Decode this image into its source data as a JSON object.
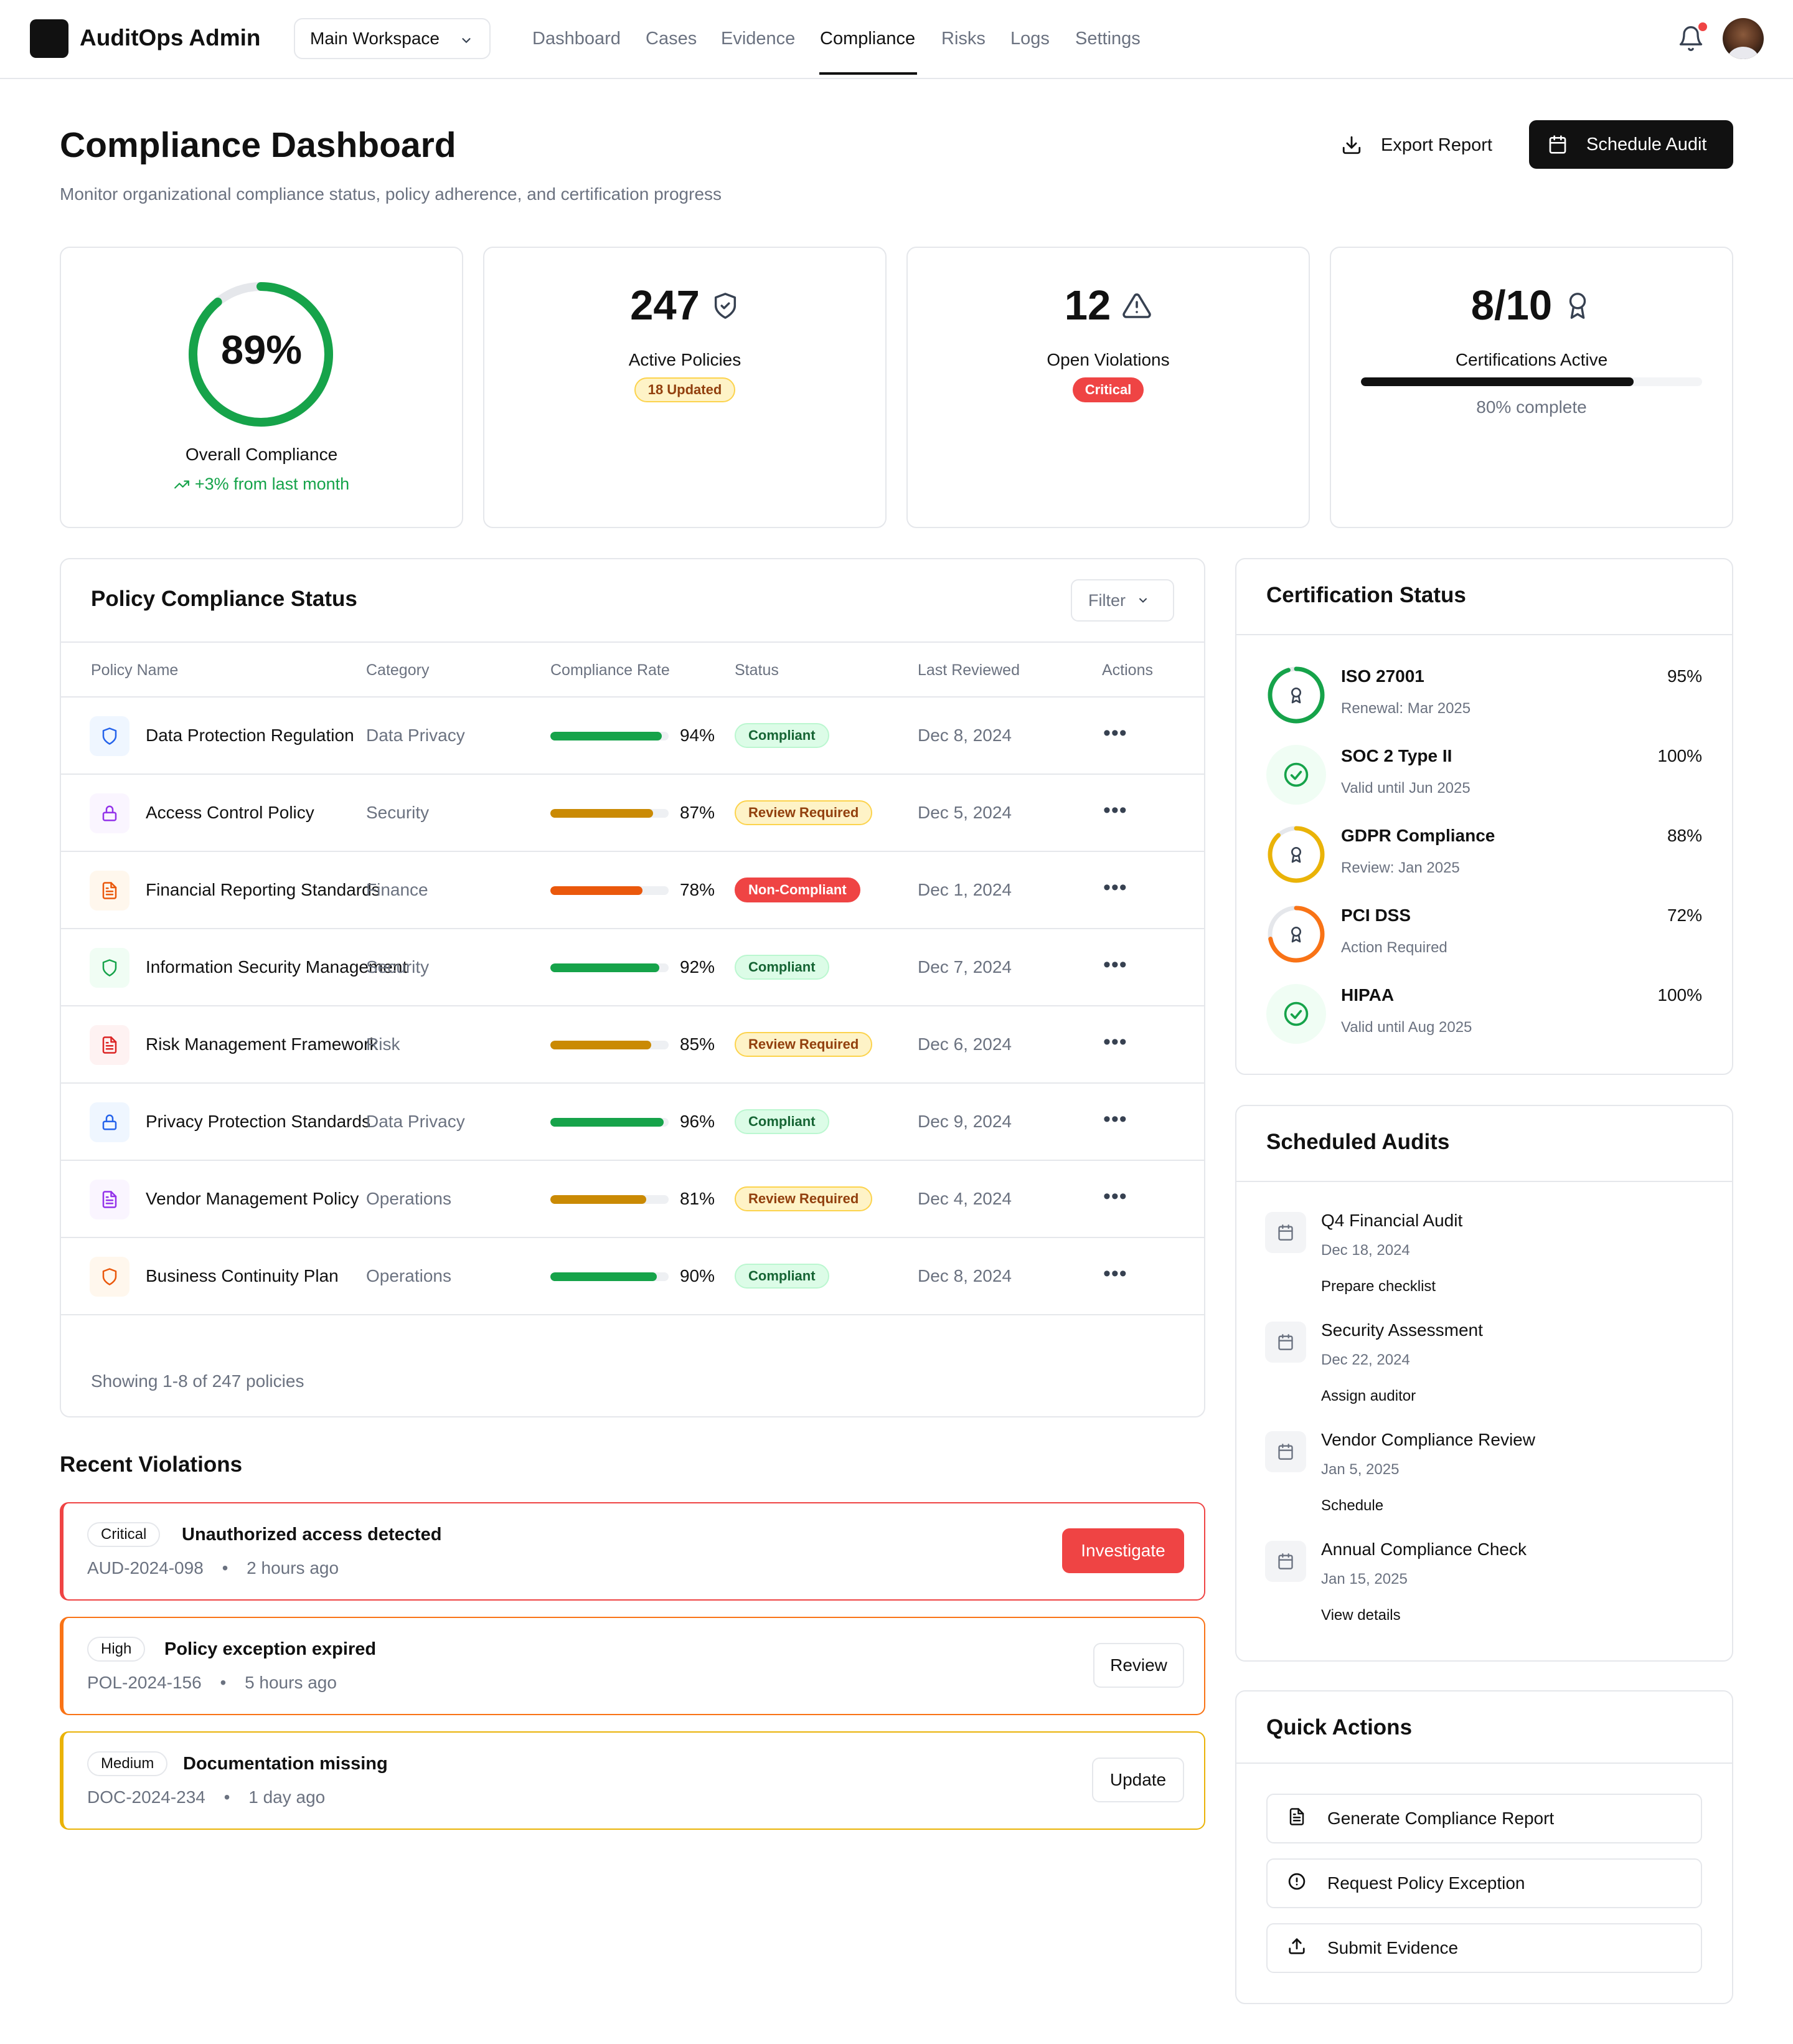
{
  "app": {
    "title": "AuditOps Admin",
    "workspace": "Main Workspace"
  },
  "nav": [
    {
      "label": "Dashboard",
      "active": false
    },
    {
      "label": "Cases",
      "active": false
    },
    {
      "label": "Evidence",
      "active": false
    },
    {
      "label": "Compliance",
      "active": true
    },
    {
      "label": "Risks",
      "active": false
    },
    {
      "label": "Logs",
      "active": false
    },
    {
      "label": "Settings",
      "active": false
    }
  ],
  "header": {
    "title": "Compliance Dashboard",
    "subtitle": "Monitor organizational compliance status, policy adherence, and certification progress",
    "export_label": "Export Report",
    "schedule_label": "Schedule Audit"
  },
  "stats": {
    "overall": {
      "value": "89%",
      "fraction": 0.89,
      "label": "Overall Compliance",
      "trend": "+3% from last month"
    },
    "policies": {
      "value": "247",
      "label": "Active Policies",
      "badge": "18 Updated"
    },
    "violations": {
      "value": "12",
      "label": "Open Violations",
      "badge": "Critical"
    },
    "certs": {
      "value": "8/10",
      "label": "Certifications Active",
      "progress": 0.8,
      "progress_text": "80% complete"
    }
  },
  "policy_table": {
    "title": "Policy Compliance Status",
    "filter_label": "Filter",
    "columns": [
      "Policy Name",
      "Category",
      "Compliance Rate",
      "Status",
      "Last Reviewed",
      "Actions"
    ],
    "rows": [
      {
        "name": "Data Protection Regulation",
        "category": "Data Privacy",
        "rate": "94%",
        "rate_value": 94,
        "status": "Compliant",
        "reviewed": "Dec 8, 2024",
        "icon": "shield-icon",
        "tone": "blue"
      },
      {
        "name": "Access Control Policy",
        "category": "Security",
        "rate": "87%",
        "rate_value": 87,
        "status": "Review Required",
        "reviewed": "Dec 5, 2024",
        "icon": "lock-icon",
        "tone": "purple"
      },
      {
        "name": "Financial Reporting Standards",
        "category": "Finance",
        "rate": "78%",
        "rate_value": 78,
        "status": "Non-Compliant",
        "reviewed": "Dec 1, 2024",
        "icon": "document-icon",
        "tone": "orange"
      },
      {
        "name": "Information Security Management",
        "category": "Security",
        "rate": "92%",
        "rate_value": 92,
        "status": "Compliant",
        "reviewed": "Dec 7, 2024",
        "icon": "shield-icon",
        "tone": "green"
      },
      {
        "name": "Risk Management Framework",
        "category": "Risk",
        "rate": "85%",
        "rate_value": 85,
        "status": "Review Required",
        "reviewed": "Dec 6, 2024",
        "icon": "document-icon",
        "tone": "red"
      },
      {
        "name": "Privacy Protection Standards",
        "category": "Data Privacy",
        "rate": "96%",
        "rate_value": 96,
        "status": "Compliant",
        "reviewed": "Dec 9, 2024",
        "icon": "lock-icon",
        "tone": "blue"
      },
      {
        "name": "Vendor Management Policy",
        "category": "Operations",
        "rate": "81%",
        "rate_value": 81,
        "status": "Review Required",
        "reviewed": "Dec 4, 2024",
        "icon": "document-icon",
        "tone": "purple"
      },
      {
        "name": "Business Continuity Plan",
        "category": "Operations",
        "rate": "90%",
        "rate_value": 90,
        "status": "Compliant",
        "reviewed": "Dec 8, 2024",
        "icon": "shield-icon",
        "tone": "orange"
      }
    ],
    "footer": "Showing 1-8 of 247 policies"
  },
  "violations": {
    "title": "Recent Violations",
    "items": [
      {
        "severity": "Critical",
        "title": "Unauthorized access detected",
        "id": "AUD-2024-098",
        "time": "2 hours ago",
        "action": "Investigate",
        "color": "#ef4444"
      },
      {
        "severity": "High",
        "title": "Policy exception expired",
        "id": "POL-2024-156",
        "time": "5 hours ago",
        "action": "Review",
        "color": "#f97316"
      },
      {
        "severity": "Medium",
        "title": "Documentation missing",
        "id": "DOC-2024-234",
        "time": "1 day ago",
        "action": "Update",
        "color": "#eab308"
      }
    ]
  },
  "certifications": {
    "title": "Certification Status",
    "items": [
      {
        "name": "ISO 27001",
        "sub": "Renewal: Mar 2025",
        "pct": "95%",
        "value": 0.95,
        "icon": "award-icon",
        "color": "#16a34a"
      },
      {
        "name": "SOC 2 Type II",
        "sub": "Valid until Jun 2025",
        "pct": "100%",
        "value": 1.0,
        "icon": "check-circle-icon",
        "color": "#16a34a"
      },
      {
        "name": "GDPR Compliance",
        "sub": "Review: Jan 2025",
        "pct": "88%",
        "value": 0.88,
        "icon": "award-icon",
        "color": "#eab308"
      },
      {
        "name": "PCI DSS",
        "sub": "Action Required",
        "pct": "72%",
        "value": 0.72,
        "icon": "award-icon",
        "color": "#f97316"
      },
      {
        "name": "HIPAA",
        "sub": "Valid until Aug 2025",
        "pct": "100%",
        "value": 1.0,
        "icon": "check-circle-icon",
        "color": "#16a34a"
      }
    ]
  },
  "audits": {
    "title": "Scheduled Audits",
    "items": [
      {
        "name": "Q4 Financial Audit",
        "date": "Dec 18, 2024",
        "action": "Prepare checklist"
      },
      {
        "name": "Security Assessment",
        "date": "Dec 22, 2024",
        "action": "Assign auditor"
      },
      {
        "name": "Vendor Compliance Review",
        "date": "Jan 5, 2025",
        "action": "Schedule"
      },
      {
        "name": "Annual Compliance Check",
        "date": "Jan 15, 2025",
        "action": "View details"
      }
    ]
  },
  "quick_actions": {
    "title": "Quick Actions",
    "items": [
      {
        "label": "Generate Compliance Report",
        "icon": "document-icon"
      },
      {
        "label": "Request Policy Exception",
        "icon": "alert-circle-icon"
      },
      {
        "label": "Submit Evidence",
        "icon": "upload-icon"
      }
    ]
  }
}
